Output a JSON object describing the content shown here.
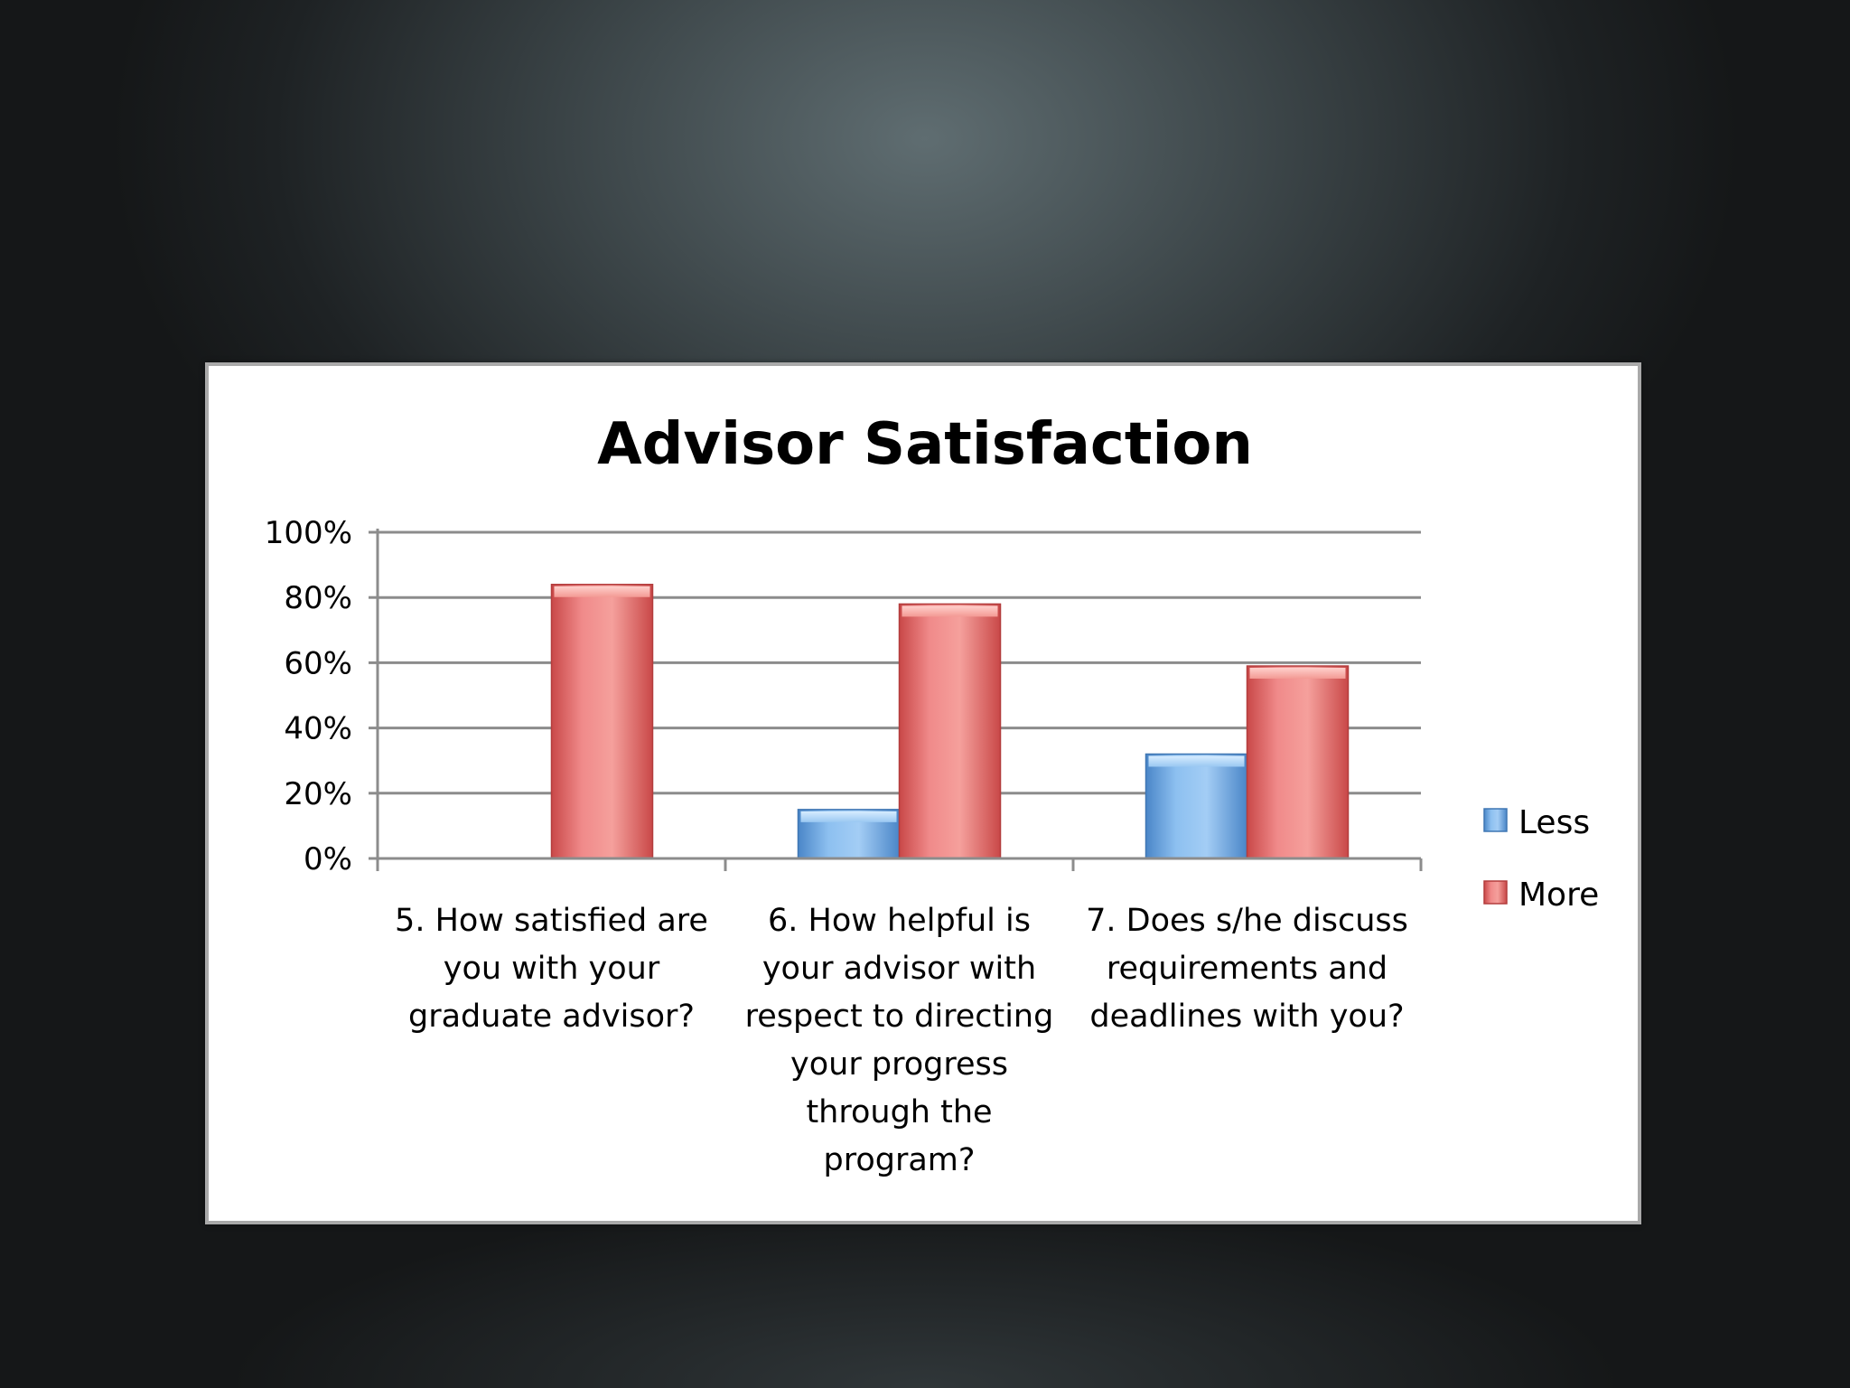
{
  "chart_data": {
    "type": "bar",
    "title": "Advisor Satisfaction",
    "categories": [
      [
        "5. How satisfied are",
        "you with your",
        "graduate advisor?"
      ],
      [
        "6. How helpful is",
        "your advisor with",
        "respect to directing",
        "your progress",
        "through the",
        "program?"
      ],
      [
        "7. Does s/he discuss",
        "requirements and",
        "deadlines with you?"
      ]
    ],
    "series": [
      {
        "name": "Less",
        "values": [
          0,
          15,
          32
        ],
        "color": "#5b9bd5"
      },
      {
        "name": "More",
        "values": [
          84,
          78,
          59
        ],
        "color": "#e06666"
      }
    ],
    "ylim": [
      0,
      100
    ],
    "yticks": [
      "0%",
      "20%",
      "40%",
      "60%",
      "80%",
      "100%"
    ],
    "grid": true,
    "legend": "right"
  }
}
